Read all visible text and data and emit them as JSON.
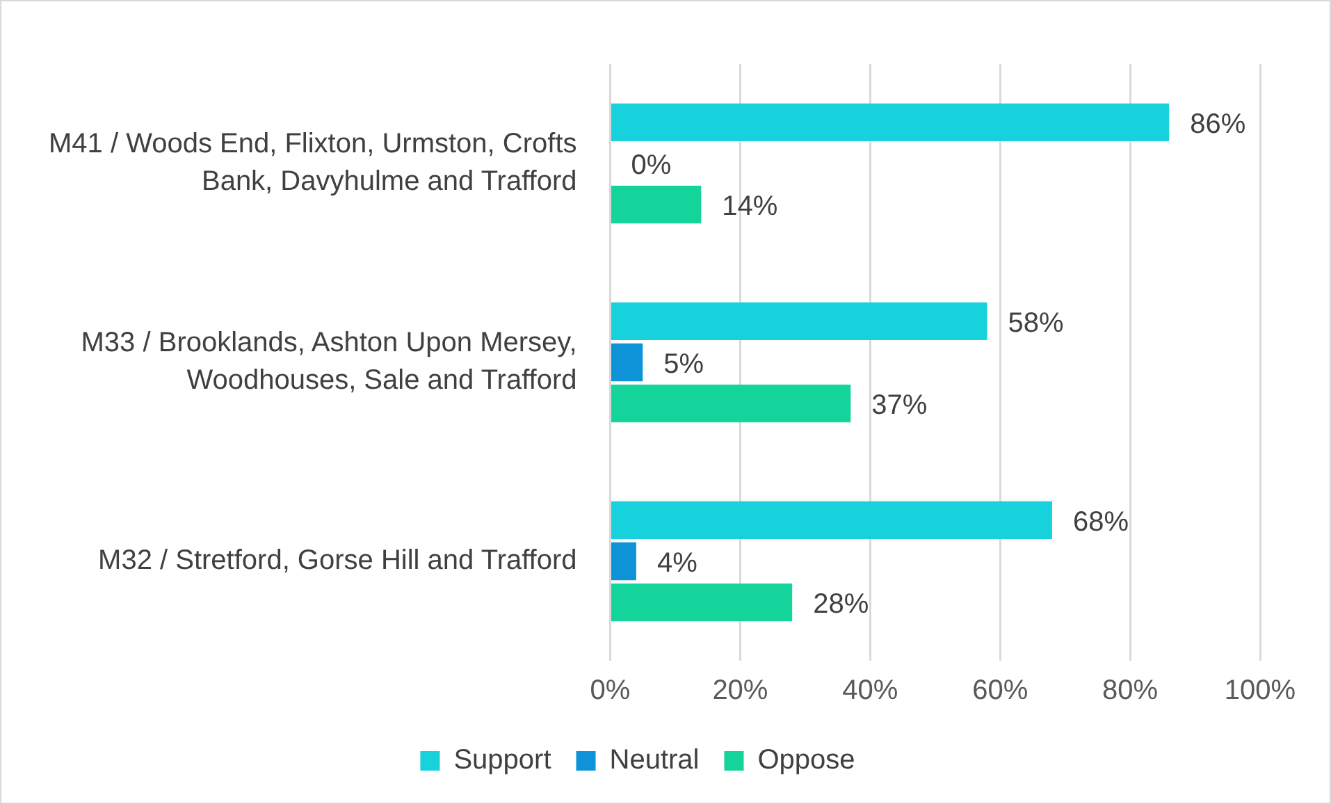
{
  "chart_data": {
    "type": "bar",
    "orientation": "horizontal",
    "categories": [
      "M41 / Woods End, Flixton, Urmston, Crofts Bank, Davyhulme and Trafford",
      "M33 / Brooklands, Ashton Upon Mersey, Woodhouses, Sale and Trafford",
      "M32 / Stretford, Gorse Hill and Trafford"
    ],
    "series": [
      {
        "name": "Support",
        "color": "#17d2dd",
        "values": [
          86,
          58,
          68
        ],
        "value_labels": [
          "86%",
          "58%",
          "68%"
        ]
      },
      {
        "name": "Neutral",
        "color": "#0f93d8",
        "values": [
          0,
          5,
          4
        ],
        "value_labels": [
          "0%",
          "5%",
          "4%"
        ]
      },
      {
        "name": "Oppose",
        "color": "#14d39b",
        "values": [
          14,
          37,
          28
        ],
        "value_labels": [
          "14%",
          "37%",
          "28%"
        ]
      }
    ],
    "xlim": [
      0,
      100
    ],
    "xticks": [
      {
        "value": 0,
        "label": "0%"
      },
      {
        "value": 20,
        "label": "20%"
      },
      {
        "value": 40,
        "label": "40%"
      },
      {
        "value": 60,
        "label": "60%"
      },
      {
        "value": 80,
        "label": "80%"
      },
      {
        "value": 100,
        "label": "100%"
      }
    ],
    "grid": "x",
    "legend": "bottom"
  }
}
